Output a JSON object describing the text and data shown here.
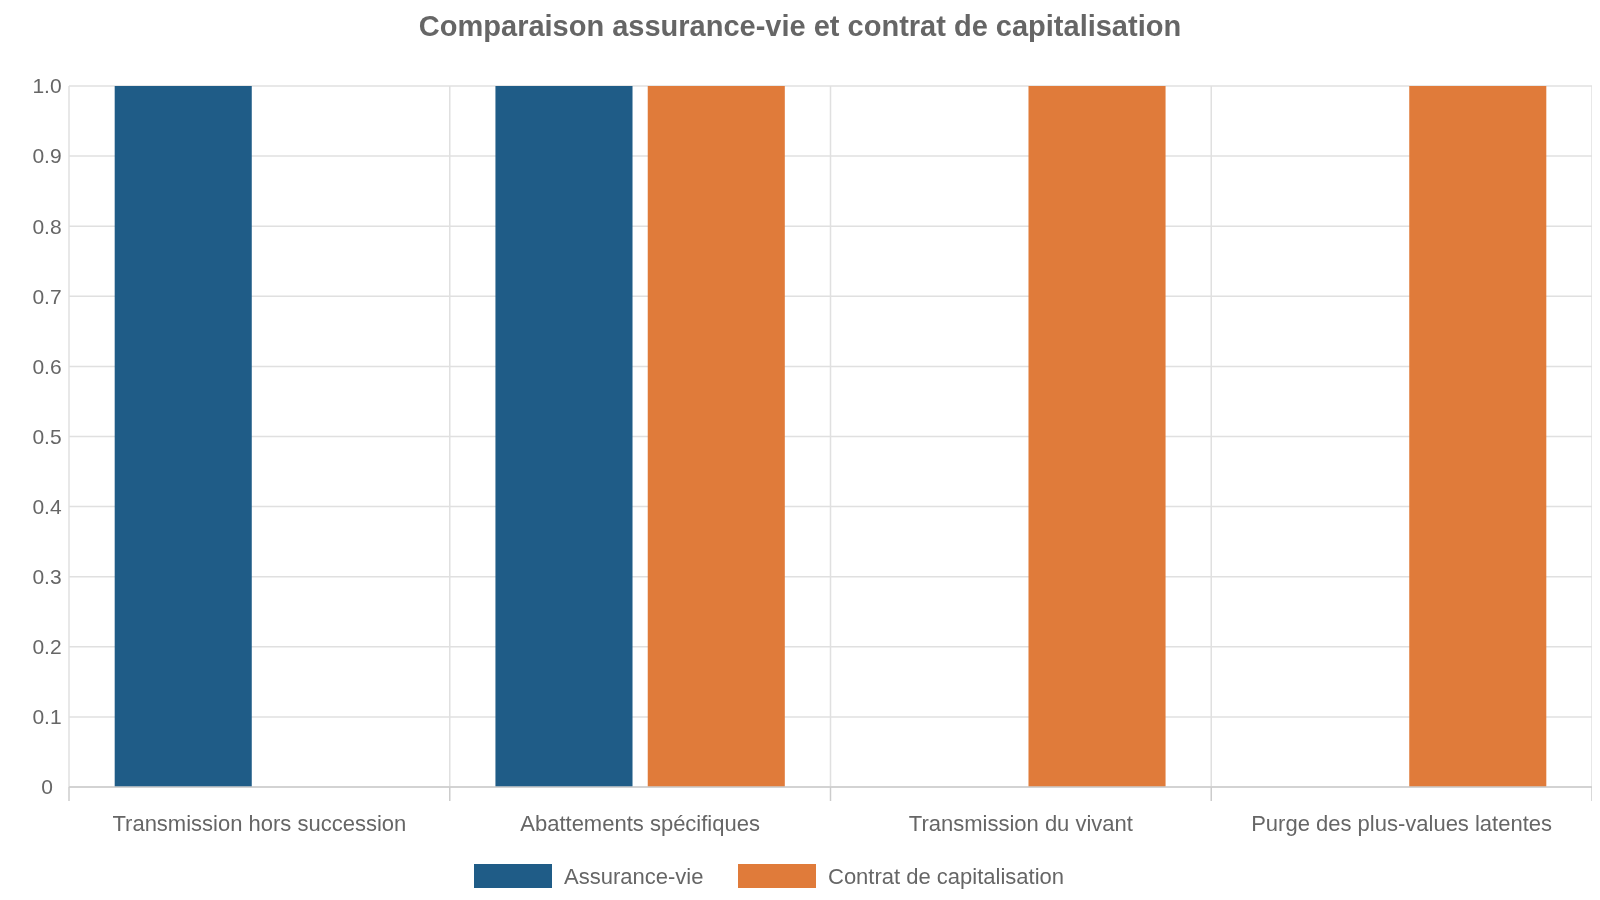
{
  "chart_data": {
    "type": "bar",
    "title": "Comparaison assurance-vie et contrat de capitalisation",
    "categories": [
      "Transmission hors succession",
      "Abattements spécifiques",
      "Transmission du vivant",
      "Purge des plus-values latentes"
    ],
    "series": [
      {
        "name": "Assurance-vie",
        "color": "#1f5c87",
        "values": [
          1,
          1,
          0,
          0
        ]
      },
      {
        "name": "Contrat de capitalisation",
        "color": "#e07b3a",
        "values": [
          0,
          1,
          1,
          1
        ]
      }
    ],
    "ylim": [
      0,
      1
    ],
    "yticks": [
      0,
      {
        "value": 0.1,
        "label": "0.1"
      },
      {
        "value": 0.2,
        "label": "0.2"
      },
      {
        "value": 0.3,
        "label": "0.3"
      },
      {
        "value": 0.4,
        "label": "0.4"
      },
      {
        "value": 0.5,
        "label": "0.5"
      },
      {
        "value": 0.6,
        "label": "0.6"
      },
      {
        "value": 0.7,
        "label": "0.7"
      },
      {
        "value": 0.8,
        "label": "0.8"
      },
      {
        "value": 0.9,
        "label": "0.9"
      },
      {
        "value": 1,
        "label": "1.0"
      }
    ],
    "grid": true,
    "legend": "bottom"
  }
}
